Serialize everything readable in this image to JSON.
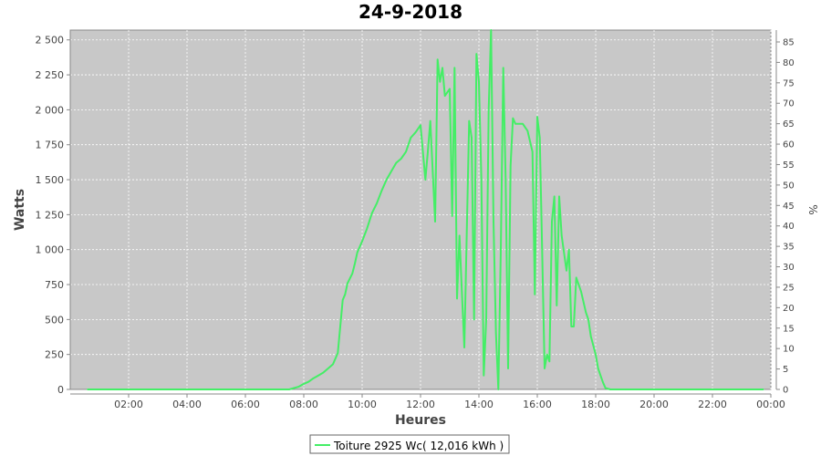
{
  "chart_data": {
    "type": "line",
    "title": "24-9-2018",
    "xlabel": "Heures",
    "ylabel": "Watts",
    "y2label": "%",
    "xlim": [
      "00:00",
      "24:00"
    ],
    "ylim": [
      0,
      2570
    ],
    "y2lim": [
      0,
      87.9
    ],
    "x_tick_labels": [
      "02:00",
      "04:00",
      "06:00",
      "08:00",
      "10:00",
      "12:00",
      "14:00",
      "16:00",
      "18:00",
      "20:00",
      "22:00",
      "00:00"
    ],
    "y_tick_labels": [
      "0",
      "250",
      "500",
      "750",
      "1 000",
      "1 250",
      "1 500",
      "1 750",
      "2 000",
      "2 250",
      "2 500"
    ],
    "y_ticks": [
      0,
      250,
      500,
      750,
      1000,
      1250,
      1500,
      1750,
      2000,
      2250,
      2500
    ],
    "y2_tick_labels": [
      "0",
      "5",
      "10",
      "15",
      "20",
      "25",
      "30",
      "35",
      "40",
      "45",
      "50",
      "55",
      "60",
      "65",
      "70",
      "75",
      "80",
      "85"
    ],
    "y2_ticks": [
      0,
      5,
      10,
      15,
      20,
      25,
      30,
      35,
      40,
      45,
      50,
      55,
      60,
      65,
      70,
      75,
      80,
      85
    ],
    "grid": true,
    "legend_position": "bottom-center",
    "colors": {
      "plot_background": "#c8c8c8",
      "grid": "#ffffff",
      "series": "#44ee66"
    },
    "series": [
      {
        "name": "Toiture 2925 Wc( 12,016 kWh )",
        "x": [
          "00:35",
          "07:30",
          "07:50",
          "08:00",
          "08:10",
          "08:20",
          "08:30",
          "08:40",
          "08:50",
          "09:00",
          "09:10",
          "09:20",
          "09:25",
          "09:30",
          "09:40",
          "09:45",
          "09:50",
          "10:00",
          "10:10",
          "10:20",
          "10:30",
          "10:40",
          "10:50",
          "11:00",
          "11:10",
          "11:20",
          "11:30",
          "11:40",
          "11:50",
          "12:00",
          "12:10",
          "12:15",
          "12:20",
          "12:30",
          "12:35",
          "12:40",
          "12:45",
          "12:50",
          "13:00",
          "13:05",
          "13:10",
          "13:15",
          "13:20",
          "13:25",
          "13:30",
          "13:40",
          "13:45",
          "13:50",
          "13:55",
          "14:00",
          "14:05",
          "14:10",
          "14:15",
          "14:20",
          "14:25",
          "14:30",
          "14:35",
          "14:40",
          "14:45",
          "14:50",
          "14:55",
          "15:00",
          "15:05",
          "15:10",
          "15:15",
          "15:20",
          "15:30",
          "15:40",
          "15:50",
          "15:55",
          "16:00",
          "16:05",
          "16:10",
          "16:15",
          "16:20",
          "16:25",
          "16:30",
          "16:35",
          "16:40",
          "16:45",
          "16:50",
          "17:00",
          "17:05",
          "17:10",
          "17:15",
          "17:20",
          "17:30",
          "17:40",
          "17:45",
          "17:50",
          "18:00",
          "18:05",
          "18:10",
          "18:15",
          "18:20",
          "18:30",
          "18:40",
          "18:50",
          "19:00",
          "19:10",
          "19:20",
          "19:30",
          "19:40",
          "23:45"
        ],
        "values": [
          0,
          0,
          20,
          40,
          55,
          80,
          100,
          120,
          150,
          180,
          260,
          640,
          680,
          760,
          830,
          900,
          980,
          1060,
          1150,
          1260,
          1330,
          1420,
          1500,
          1560,
          1620,
          1650,
          1700,
          1800,
          1840,
          1890,
          1500,
          1700,
          1920,
          1200,
          2360,
          2200,
          2300,
          2100,
          2150,
          1240,
          2300,
          650,
          1100,
          700,
          300,
          1920,
          1800,
          500,
          2400,
          2200,
          1500,
          100,
          500,
          2000,
          2570,
          1200,
          400,
          0,
          1000,
          2300,
          1500,
          150,
          1600,
          1940,
          1900,
          1900,
          1900,
          1850,
          1700,
          680,
          1950,
          1800,
          1000,
          150,
          250,
          200,
          1200,
          1380,
          600,
          1380,
          1100,
          850,
          1000,
          450,
          450,
          800,
          700,
          550,
          500,
          380,
          250,
          150,
          100,
          50,
          10,
          0,
          0,
          0,
          0,
          0,
          0,
          0,
          0,
          0
        ]
      }
    ]
  }
}
